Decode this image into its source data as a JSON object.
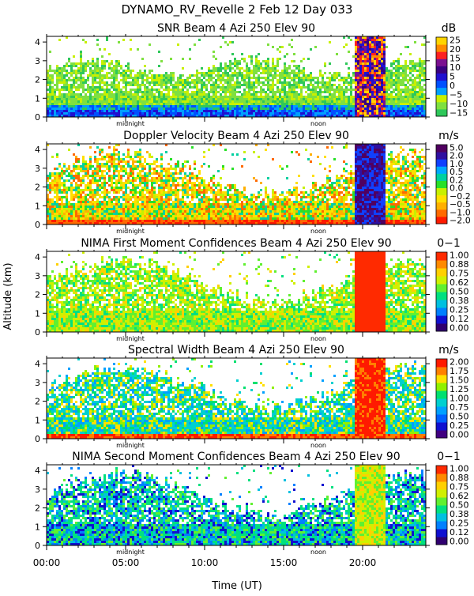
{
  "header": {
    "title": "DYNAMO_RV_Revelle    2 Feb 12 Day 033"
  },
  "colors": {
    "snr": [
      "#2ec85a",
      "#7fe040",
      "#c8f000",
      "#00a0ff",
      "#0050ff",
      "#2010d0",
      "#3a0080",
      "#7a1090",
      "#ff2020",
      "#ff8a00",
      "#ffd400"
    ],
    "velocity": [
      "#ff1a00",
      "#ff6a00",
      "#ffb000",
      "#ffe000",
      "#c8f000",
      "#28e028",
      "#00d0a0",
      "#00a8ff",
      "#1040ff",
      "#3010a0",
      "#500060"
    ],
    "confidence": [
      "#300070",
      "#1010d0",
      "#0080ff",
      "#00c0e0",
      "#00e080",
      "#60f030",
      "#d0f000",
      "#ffd000",
      "#ff8a00",
      "#ff2a00"
    ],
    "width": [
      "#400080",
      "#1010d0",
      "#0060ff",
      "#00a0ff",
      "#00d0d0",
      "#00e070",
      "#90f000",
      "#ffe000",
      "#ff8000",
      "#ff1a00"
    ]
  },
  "chart_data": [
    {
      "type": "heatmap",
      "title": "SNR Beam 4 Azi 250 Elev 90",
      "unit": "dB",
      "ylim": [
        0,
        4.3
      ],
      "yticks": [
        "0",
        "1",
        "2",
        "3",
        "4"
      ],
      "colorbar_ticks": [
        "25",
        "20",
        "15",
        "10",
        "5",
        "0",
        "−5",
        "−10",
        "−15"
      ],
      "colorbar_range": [
        -17.5,
        27.5
      ],
      "time_annotations": [
        "midnight",
        "noon"
      ]
    },
    {
      "type": "heatmap",
      "title": "Doppler Velocity Beam 4 Azi 250 Elev 90",
      "unit": "m/s",
      "ylim": [
        0,
        4.3
      ],
      "yticks": [
        "0",
        "1",
        "2",
        "3",
        "4"
      ],
      "colorbar_ticks": [
        "5.0",
        "2.0",
        "1.0",
        "0.5",
        "0.2",
        "0.0",
        "−0.2",
        "−0.5",
        "−1.0",
        "−2.0"
      ],
      "time_annotations": [
        "midnight",
        "noon"
      ]
    },
    {
      "type": "heatmap",
      "title": "NIMA First Moment Confidences Beam 4 Azi 250 Elev 90",
      "unit": "0−1",
      "ylim": [
        0,
        4.3
      ],
      "yticks": [
        "0",
        "1",
        "2",
        "3",
        "4"
      ],
      "colorbar_ticks": [
        "1.00",
        "0.88",
        "0.75",
        "0.62",
        "0.50",
        "0.38",
        "0.25",
        "0.12",
        "0.00"
      ],
      "colorbar_range": [
        0,
        1
      ],
      "time_annotations": [
        "midnight",
        "noon"
      ]
    },
    {
      "type": "heatmap",
      "title": "Spectral Width Beam 4 Azi 250 Elev 90",
      "unit": "m/s",
      "ylim": [
        0,
        4.3
      ],
      "yticks": [
        "0",
        "1",
        "2",
        "3",
        "4"
      ],
      "colorbar_ticks": [
        "2.00",
        "1.75",
        "1.50",
        "1.25",
        "1.00",
        "0.75",
        "0.50",
        "0.25",
        "0.00"
      ],
      "colorbar_range": [
        0,
        2
      ],
      "time_annotations": [
        "midnight",
        "noon"
      ]
    },
    {
      "type": "heatmap",
      "title": "NIMA Second Moment Confidences Beam 4 Azi 250 Elev 90",
      "unit": "0−1",
      "ylim": [
        0,
        4.3
      ],
      "yticks": [
        "0",
        "1",
        "2",
        "3",
        "4"
      ],
      "colorbar_ticks": [
        "1.00",
        "0.88",
        "0.75",
        "0.62",
        "0.50",
        "0.38",
        "0.25",
        "0.12",
        "0.00"
      ],
      "colorbar_range": [
        0,
        1
      ],
      "time_annotations": [
        "midnight",
        "noon"
      ]
    }
  ],
  "axes": {
    "ylabel": "Altitude (km)",
    "xlabel": "Time (UT)",
    "xlim_hours": [
      0,
      24
    ],
    "xtick_labels": [
      "00:00",
      "05:00",
      "10:00",
      "15:00",
      "20:00"
    ],
    "xtick_hours": [
      0,
      5,
      10,
      15,
      20
    ],
    "annotation_hours": {
      "midnight": 5.3,
      "noon": 17.2
    }
  }
}
